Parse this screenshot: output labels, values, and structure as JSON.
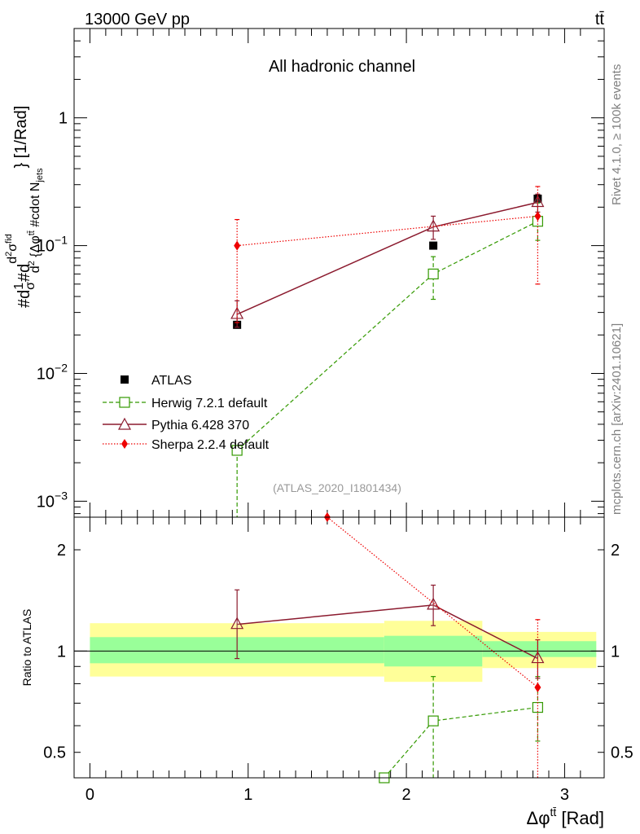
{
  "header": {
    "energy_label": "13000 GeV pp",
    "process_label": "tt̄"
  },
  "side": {
    "rivet_label": "Rivet 4.1.0, ≥ 100k events",
    "mcplots_label": "mcplots.cern.ch [arXiv:2401.10621]"
  },
  "colors": {
    "atlas": "#000000",
    "herwig": "#339900",
    "pythia": "#8b1a2e",
    "sherpa": "#ee0000",
    "band_outer": "#ffff99",
    "band_inner": "#99ff99"
  },
  "chart_data": [
    {
      "type": "line",
      "title": "All hadronic channel",
      "watermark": "(ATLAS_2020_I1801434)",
      "ylabel": "#d1/σ#d d²σ^{fid} / d² {Δφ^{tt̄} #cdot N_{jets}} [1/Rad]",
      "ylabel_parts": {
        "p1": "#d",
        "p2": "1",
        "p3": "σ",
        "p4": "#d",
        "p5": "d",
        "p6": "2",
        "p7": "σ",
        "p8": "fid",
        "p9": "d",
        "p10": "2",
        "p11": " {Δφ",
        "p12": "tt̄",
        "p13": " #cdot N",
        "p14": "jets",
        "p15": "} [1/Rad]"
      },
      "yscale": "log",
      "xlim": [
        -0.1,
        3.25
      ],
      "ylim": [
        0.00075,
        5.0
      ],
      "yticks": [
        {
          "value": 0.001,
          "base": "10",
          "exp": "−3"
        },
        {
          "value": 0.01,
          "base": "10",
          "exp": "−2"
        },
        {
          "value": 0.1,
          "base": "10",
          "exp": "−1"
        },
        {
          "value": 1,
          "base": "1",
          "exp": ""
        }
      ],
      "series": [
        {
          "name": "ATLAS",
          "style": "data",
          "x": [
            0.93,
            2.17,
            2.83
          ],
          "y": [
            0.024,
            0.1,
            0.233
          ],
          "xerr": [
            [
              0,
              0
            ],
            [
              0,
              0
            ],
            [
              0,
              0
            ]
          ],
          "yerr": [
            [
              0.0005,
              0.0005
            ],
            [
              0.002,
              0.002
            ],
            [
              0.005,
              0.005
            ]
          ]
        },
        {
          "name": "Herwig 7.2.1 default",
          "style": "herwig",
          "x": [
            0.93,
            2.17,
            2.83
          ],
          "y": [
            0.0025,
            0.06,
            0.155
          ],
          "yerr": [
            [
              0.0023,
              0.0
            ],
            [
              0.022,
              0.022
            ],
            [
              0.045,
              0.06
            ]
          ]
        },
        {
          "name": "Pythia 6.428 370",
          "style": "pythia",
          "x": [
            0.93,
            2.17,
            2.83
          ],
          "y": [
            0.029,
            0.14,
            0.218
          ],
          "yerr": [
            [
              0.006,
              0.008
            ],
            [
              0.028,
              0.03
            ],
            [
              0.035,
              0.035
            ]
          ]
        },
        {
          "name": "Sherpa 2.2.4 default",
          "style": "sherpa",
          "x": [
            0.93,
            2.83
          ],
          "y": [
            0.1,
            0.17
          ],
          "yerr": [
            [
              0.075,
              0.06
            ],
            [
              0.12,
              0.12
            ]
          ]
        }
      ],
      "legend": [
        "ATLAS",
        "Herwig 7.2.1 default",
        "Pythia 6.428 370",
        "Sherpa 2.2.4 default"
      ]
    },
    {
      "type": "line",
      "title": "",
      "ylabel": "Ratio to ATLAS",
      "xlabel_main": "Δφ",
      "xlabel_sup": "tt̄",
      "xlabel_unit": " [Rad]",
      "yscale": "log",
      "xlim": [
        -0.1,
        3.25
      ],
      "ylim": [
        0.42,
        2.5
      ],
      "xticks": [
        {
          "value": 0,
          "label": "0"
        },
        {
          "value": 1,
          "label": "1"
        },
        {
          "value": 2,
          "label": "2"
        },
        {
          "value": 3,
          "label": "3"
        }
      ],
      "yticks": [
        {
          "value": 0.5,
          "label": "0.5"
        },
        {
          "value": 1,
          "label": "1"
        },
        {
          "value": 2,
          "label": "2"
        }
      ],
      "bands": [
        {
          "x0": 0.0,
          "x1": 1.86,
          "outer": [
            0.84,
            1.21
          ],
          "inner": [
            0.92,
            1.1
          ]
        },
        {
          "x0": 1.86,
          "x1": 2.48,
          "outer": [
            0.81,
            1.23
          ],
          "inner": [
            0.9,
            1.11
          ]
        },
        {
          "x0": 2.48,
          "x1": 3.2,
          "outer": [
            0.89,
            1.14
          ],
          "inner": [
            0.96,
            1.07
          ]
        }
      ],
      "series": [
        {
          "name": "Herwig 7.2.1 default",
          "style": "herwig",
          "x": [
            1.86,
            2.17,
            2.83
          ],
          "y": [
            0.42,
            0.62,
            0.68
          ],
          "yerr": [
            [
              0.0,
              0.0
            ],
            [
              0.22,
              0.22
            ],
            [
              0.14,
              0.16
            ]
          ]
        },
        {
          "name": "Pythia 6.428 370",
          "style": "pythia",
          "x": [
            0.93,
            2.17,
            2.83
          ],
          "y": [
            1.2,
            1.37,
            0.95
          ],
          "yerr": [
            [
              0.25,
              0.32
            ],
            [
              0.18,
              0.2
            ],
            [
              0.12,
              0.13
            ]
          ]
        },
        {
          "name": "Sherpa 2.2.4 default",
          "style": "sherpa",
          "x": [
            1.5,
            2.83
          ],
          "y": [
            2.5,
            0.78
          ],
          "yerr": [
            [
              0.0,
              0.0
            ],
            [
              0.36,
              0.46
            ]
          ]
        }
      ]
    }
  ]
}
